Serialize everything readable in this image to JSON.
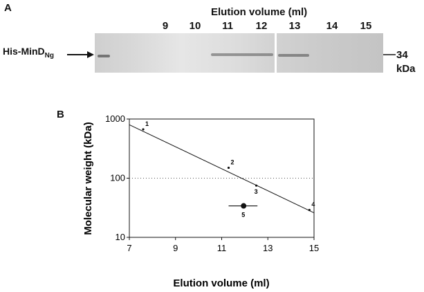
{
  "panel_a": {
    "label": "A",
    "header": "Elution volume (ml)",
    "lanes": [
      "9",
      "10",
      "11",
      "12",
      "13",
      "14",
      "15"
    ],
    "protein_label_main": "His-MinD",
    "protein_label_sub": "Ng",
    "marker_value": "34",
    "marker_unit": "kDa"
  },
  "panel_b": {
    "label": "B"
  },
  "chart_data": {
    "type": "scatter",
    "title": "",
    "xlabel": "Elution volume (ml)",
    "ylabel": "Molecular weight (kDa)",
    "xlim": [
      7,
      15
    ],
    "ylim": [
      10,
      1000
    ],
    "yscale": "log",
    "x_ticks": [
      "7",
      "9",
      "11",
      "13",
      "15"
    ],
    "y_ticks": [
      "10",
      "100",
      "1000"
    ],
    "points": [
      {
        "label": "1",
        "x": 7.6,
        "y": 669
      },
      {
        "label": "2",
        "x": 11.3,
        "y": 150
      },
      {
        "label": "3",
        "x": 12.5,
        "y": 75
      },
      {
        "label": "4",
        "x": 14.8,
        "y": 29
      }
    ],
    "unknown": {
      "label": "5",
      "x": 11.95,
      "y": 34,
      "x_err": [
        11.3,
        12.55
      ]
    },
    "fit_line": {
      "x": [
        7,
        15
      ],
      "y": [
        800,
        26
      ]
    },
    "reference_line_y": 100,
    "grid": false
  }
}
